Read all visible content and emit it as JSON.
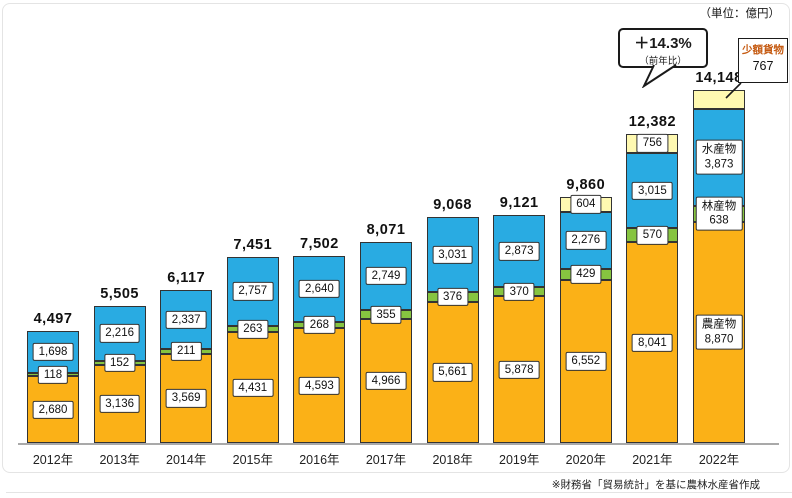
{
  "unit_label": "（単位：億円）",
  "source_note": "※財務省「貿易統計」を基に農林水産省作成",
  "annotations": {
    "growth": {
      "value": "＋14.3%",
      "sub": "（前年比）",
      "applies_to": "2022年"
    },
    "small_cargo": {
      "title": "少額貨物",
      "value_label": "767",
      "title_color": "#c55a11"
    }
  },
  "chart_data": {
    "type": "bar",
    "stacked": true,
    "title": "",
    "ylabel": "億円",
    "ylim": [
      0,
      14148
    ],
    "grid": false,
    "legend": "none",
    "categories": [
      "2012年",
      "2013年",
      "2014年",
      "2015年",
      "2016年",
      "2017年",
      "2018年",
      "2019年",
      "2020年",
      "2021年",
      "2022年"
    ],
    "series": [
      {
        "name": "農産物",
        "color": "#FBB117",
        "values": [
          2680,
          3136,
          3569,
          4431,
          4593,
          4966,
          5661,
          5878,
          6552,
          8041,
          8870
        ]
      },
      {
        "name": "林産物",
        "color": "#86C440",
        "values": [
          118,
          152,
          211,
          263,
          268,
          355,
          376,
          370,
          429,
          570,
          638
        ]
      },
      {
        "name": "水産物",
        "color": "#29ABE2",
        "values": [
          1698,
          2216,
          2337,
          2757,
          2640,
          2749,
          3031,
          2873,
          2276,
          3015,
          3873
        ]
      },
      {
        "name": "少額貨物",
        "color": "#FFF9B1",
        "values": [
          0,
          0,
          0,
          0,
          0,
          0,
          0,
          0,
          604,
          756,
          767
        ]
      }
    ],
    "totals": [
      4497,
      5505,
      6117,
      7451,
      7502,
      8071,
      9068,
      9121,
      9860,
      12382,
      14148
    ],
    "notes": "最終年(2022年)の棒には系列名付きラベルを表示。少額貨物767は右上の引き出し線ボックスに表示。"
  }
}
